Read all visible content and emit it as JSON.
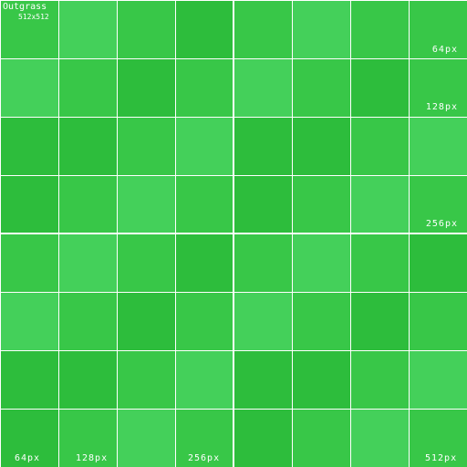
{
  "texture": {
    "title": "Outgrass",
    "size": "512x512",
    "colors": {
      "dark": "#2dbd3c",
      "mid": "#38c748",
      "light": "#44d05a",
      "grid": "#ffffff"
    },
    "rows": [
      [
        1,
        2,
        1,
        0,
        1,
        2,
        1,
        1
      ],
      [
        2,
        1,
        0,
        1,
        2,
        1,
        0,
        1
      ],
      [
        0,
        0,
        1,
        2,
        0,
        0,
        1,
        2
      ],
      [
        0,
        1,
        2,
        1,
        0,
        1,
        2,
        1
      ],
      [
        1,
        2,
        1,
        0,
        1,
        2,
        1,
        0
      ],
      [
        2,
        1,
        0,
        1,
        2,
        1,
        0,
        1
      ],
      [
        0,
        0,
        1,
        2,
        0,
        0,
        1,
        2
      ],
      [
        0,
        1,
        2,
        1,
        0,
        1,
        2,
        1
      ]
    ]
  },
  "right_labels": [
    "64px",
    "128px",
    "256px"
  ],
  "bottom_labels": [
    "64px",
    "128px",
    "256px",
    "512px"
  ]
}
